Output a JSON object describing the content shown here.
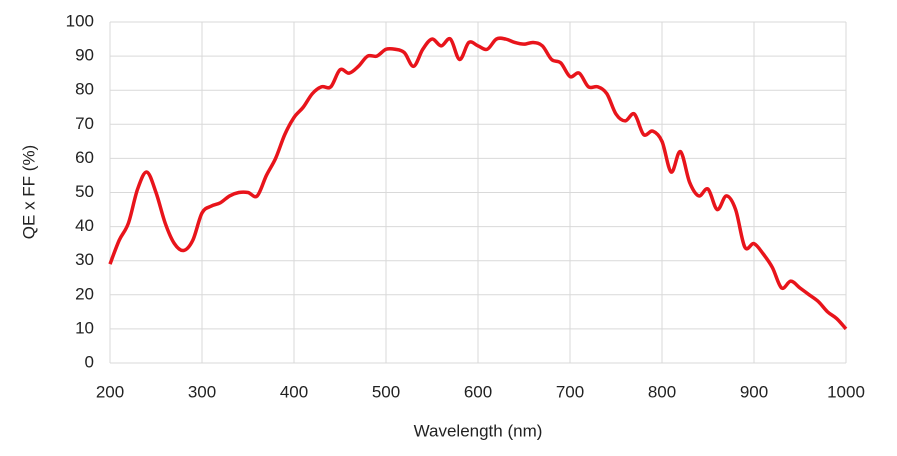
{
  "chart_data": {
    "type": "line",
    "xlabel": "Wavelength (nm)",
    "ylabel": "QE x FF (%)",
    "x": [
      200,
      210,
      220,
      230,
      240,
      250,
      260,
      270,
      280,
      290,
      300,
      310,
      320,
      330,
      340,
      350,
      360,
      370,
      380,
      390,
      400,
      410,
      420,
      430,
      440,
      450,
      460,
      470,
      480,
      490,
      500,
      510,
      520,
      530,
      540,
      550,
      560,
      570,
      580,
      590,
      600,
      610,
      620,
      630,
      640,
      650,
      660,
      670,
      680,
      690,
      700,
      710,
      720,
      730,
      740,
      750,
      760,
      770,
      780,
      790,
      800,
      810,
      820,
      830,
      840,
      850,
      860,
      870,
      880,
      890,
      900,
      910,
      920,
      930,
      940,
      950,
      960,
      970,
      980,
      990,
      1000
    ],
    "series": [
      {
        "name": "QE x FF",
        "color": "#e8141b",
        "values": [
          29,
          36,
          41,
          51,
          56,
          50,
          41,
          35,
          33,
          36,
          44,
          46,
          47,
          49,
          50,
          50,
          49,
          55,
          60,
          67,
          72,
          75,
          79,
          81,
          81,
          86,
          85,
          87,
          90,
          90,
          92,
          92,
          91,
          87,
          92,
          95,
          93,
          95,
          89,
          94,
          93,
          92,
          95,
          95,
          94,
          93.5,
          94,
          93,
          89,
          88,
          84,
          85,
          81,
          81,
          79,
          73,
          71,
          73,
          67,
          68,
          65,
          56,
          62,
          53,
          49,
          51,
          45,
          49,
          45,
          34,
          35,
          32,
          28,
          22,
          24,
          22,
          20,
          18,
          15,
          13,
          10
        ]
      }
    ],
    "xlim": [
      200,
      1000
    ],
    "ylim": [
      0,
      100
    ],
    "xticks": [
      200,
      300,
      400,
      500,
      600,
      700,
      800,
      900,
      1000
    ],
    "yticks": [
      0,
      10,
      20,
      30,
      40,
      50,
      60,
      70,
      80,
      90,
      100
    ],
    "grid": true
  }
}
